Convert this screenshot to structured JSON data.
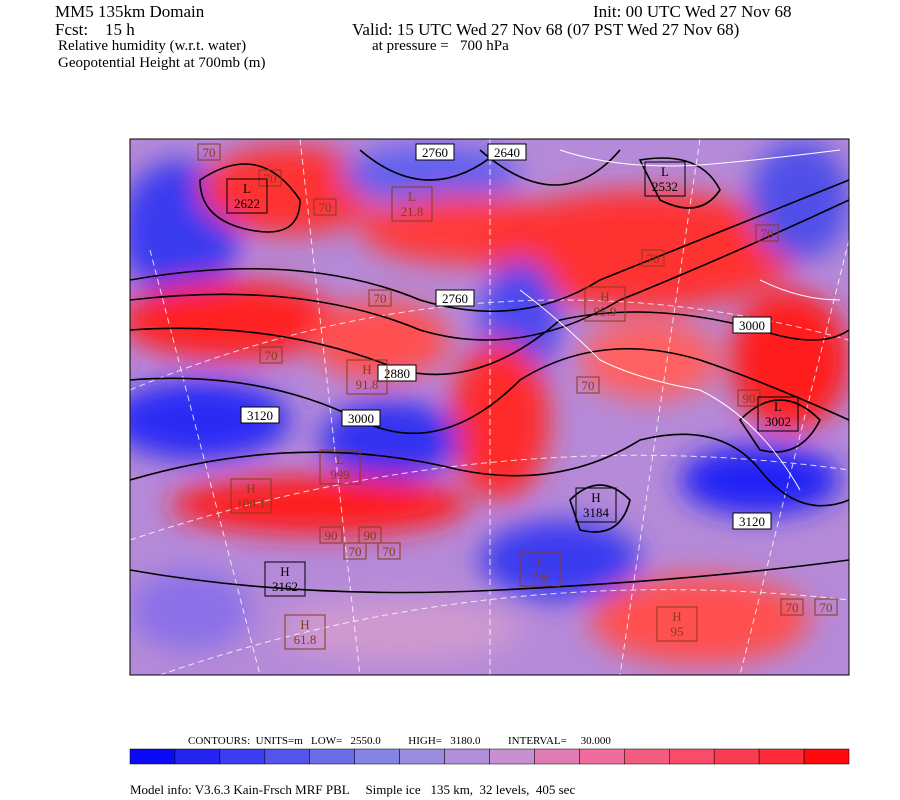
{
  "header": {
    "title": "MM5 135km Domain",
    "init": "Init: 00 UTC Wed 27 Nov 68",
    "fcst": "Fcst:    15 h",
    "valid": "Valid: 15 UTC Wed 27 Nov 68 (07 PST Wed 27 Nov 68)",
    "field1": "Relative humidity (w.r.t. water)",
    "pressure": "at pressure =   700 hPa",
    "field2": "Geopotential Height at 700mb (m)"
  },
  "map": {
    "labels": [
      70,
      70,
      {
        "mark": "L",
        "value": 2622
      },
      70,
      2760,
      2640,
      {
        "mark": "L",
        "value": 21.8
      },
      {
        "mark": "L",
        "value": 2532
      },
      70,
      70,
      70,
      2760,
      {
        "mark": "H",
        "value": 95.9
      },
      3000,
      70,
      2880,
      {
        "mark": "H",
        "value": 91.8
      },
      70,
      3120,
      3000,
      90,
      {
        "mark": "L",
        "value": 3002
      },
      {
        "mark": "L",
        "value": 999
      },
      {
        "mark": "H",
        "value": 100.1
      },
      {
        "mark": "H",
        "value": 3184
      },
      3120,
      90,
      90,
      70,
      70,
      {
        "mark": "L",
        "value": 7.6
      },
      {
        "mark": "H",
        "value": 3162
      },
      {
        "mark": "H",
        "value": 61.8
      },
      {
        "mark": "H",
        "value": 95.0
      },
      70,
      70
    ]
  },
  "footer": {
    "contours": "CONTOURS:  UNITS=m   LOW=   2550.0          HIGH=   3180.0          INTERVAL=     30.000",
    "model": "Model info: V3.6.3 Kain-Frsch MRF PBL     Simple ice   135 km,  32 levels,  405 sec"
  }
}
